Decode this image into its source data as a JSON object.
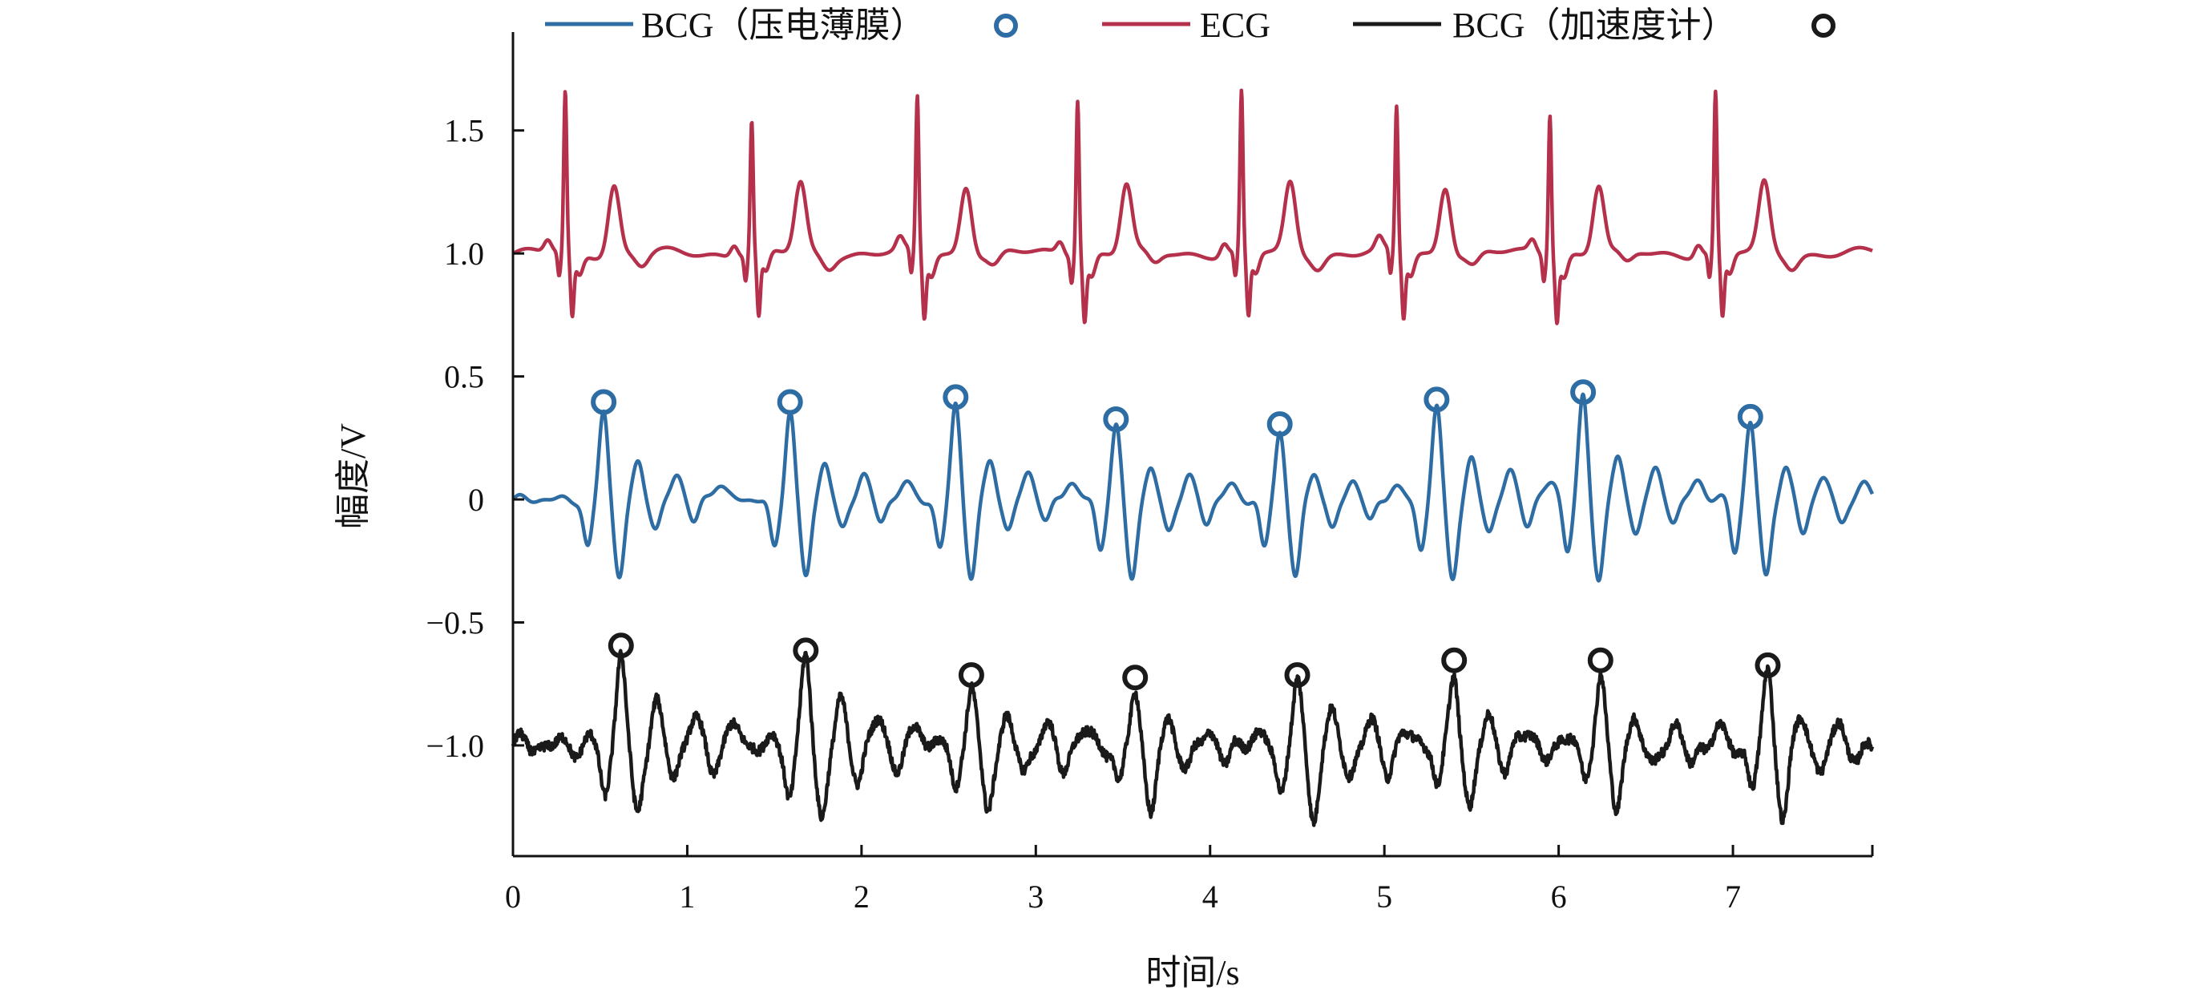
{
  "chart_data": {
    "type": "line",
    "title": "",
    "xlabel": "时间/s",
    "ylabel": "幅度/V",
    "xlim": [
      0,
      7.8
    ],
    "ylim": [
      -1.45,
      1.9
    ],
    "xticks": [
      0,
      1,
      2,
      3,
      4,
      5,
      6,
      7
    ],
    "xtick_labels": [
      "0",
      "1",
      "2",
      "3",
      "4",
      "5",
      "6",
      "7"
    ],
    "yticks": [
      -1.0,
      -0.5,
      0,
      0.5,
      1.0,
      1.5
    ],
    "ytick_labels": [
      "−1.0",
      "−0.5",
      "0",
      "0.5",
      "1.0",
      "1.5"
    ],
    "grid": false,
    "legend_position": "top",
    "legend": [
      {
        "label": "BCG（压电薄膜）",
        "series": "bcg_piezo",
        "marker": "circle"
      },
      {
        "label": "ECG",
        "series": "ecg",
        "marker": "none"
      },
      {
        "label": "BCG（加速度计）",
        "series": "bcg_accel",
        "marker": "circle"
      }
    ],
    "series": [
      {
        "id": "ecg",
        "name": "ECG",
        "color": "#b5304a",
        "baseline": 1.0,
        "r_peaks": [
          {
            "x": 0.3,
            "y": 1.65
          },
          {
            "x": 1.37,
            "y": 1.54
          },
          {
            "x": 2.32,
            "y": 1.63
          },
          {
            "x": 3.24,
            "y": 1.64
          },
          {
            "x": 4.18,
            "y": 1.65
          },
          {
            "x": 5.07,
            "y": 1.59
          },
          {
            "x": 5.95,
            "y": 1.58
          },
          {
            "x": 6.9,
            "y": 1.65
          }
        ],
        "t_wave_height": 1.28,
        "trough": 0.72
      },
      {
        "id": "bcg_piezo",
        "name": "BCG（压电薄膜）",
        "color": "#2e6da4",
        "baseline": 0.0,
        "peaks": [
          {
            "x": 0.52,
            "y": 0.37
          },
          {
            "x": 1.59,
            "y": 0.37
          },
          {
            "x": 2.54,
            "y": 0.39
          },
          {
            "x": 3.46,
            "y": 0.3
          },
          {
            "x": 4.4,
            "y": 0.28
          },
          {
            "x": 5.3,
            "y": 0.38
          },
          {
            "x": 6.14,
            "y": 0.41
          },
          {
            "x": 7.1,
            "y": 0.31
          }
        ],
        "trough": -0.37
      },
      {
        "id": "bcg_accel",
        "name": "BCG（加速度计）",
        "color": "#1a1a1a",
        "baseline": -1.0,
        "peaks": [
          {
            "x": 0.62,
            "y": -0.62
          },
          {
            "x": 1.68,
            "y": -0.64
          },
          {
            "x": 2.63,
            "y": -0.74
          },
          {
            "x": 3.57,
            "y": -0.75
          },
          {
            "x": 4.5,
            "y": -0.74
          },
          {
            "x": 5.4,
            "y": -0.68
          },
          {
            "x": 6.24,
            "y": -0.68
          },
          {
            "x": 7.2,
            "y": -0.7
          }
        ],
        "trough": -1.33
      }
    ]
  }
}
